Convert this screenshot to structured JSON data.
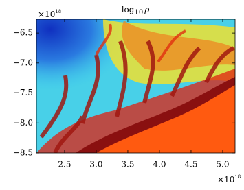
{
  "chart_data": {
    "type": "heatmap",
    "title": {
      "text": "log",
      "subscript": "10",
      "symbol": "ρ"
    },
    "xlim": [
      2.055,
      5.196
    ],
    "ylim": [
      -8.5,
      -6.27
    ],
    "xticks": [
      2.5,
      {
        "value": 3,
        "label": "3.0"
      },
      3.5,
      {
        "value": 4,
        "label": "4.0"
      },
      4.5,
      {
        "value": 5,
        "label": "5.0"
      }
    ],
    "yticks": [
      {
        "value": -6.5,
        "label": "−6.5"
      },
      {
        "value": -7,
        "label": "−7.0"
      },
      {
        "value": -7.5,
        "label": "−7.5"
      },
      {
        "value": -8,
        "label": "−8.0"
      },
      {
        "value": -8.5,
        "label": "−8.5"
      }
    ],
    "x_offset": {
      "base": "×10",
      "exponent": "18"
    },
    "y_offset": {
      "base": "×10",
      "exponent": "18"
    }
  }
}
